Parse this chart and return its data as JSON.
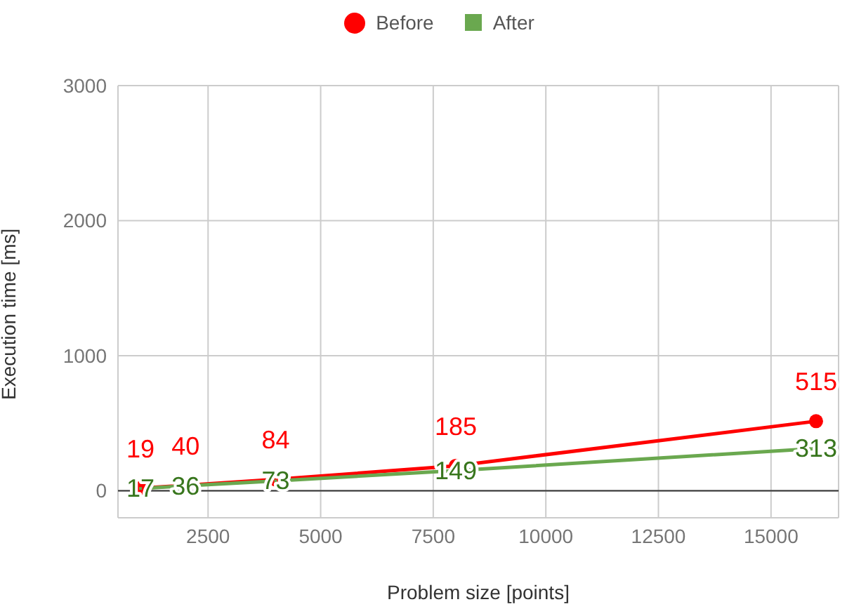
{
  "chart_data": {
    "type": "line",
    "xlabel": "Problem size [points]",
    "ylabel": "Execution time [ms]",
    "x": [
      1000,
      2000,
      4000,
      8000,
      16000
    ],
    "series": [
      {
        "name": "Before",
        "color": "#ff0000",
        "values": [
          19,
          40,
          84,
          185,
          515
        ],
        "marker": "circle"
      },
      {
        "name": "After",
        "color": "#6aa84f",
        "values": [
          17,
          36,
          73,
          149,
          313
        ],
        "marker": "square"
      }
    ],
    "xlim": [
      500,
      16500
    ],
    "xticks": [
      2500,
      5000,
      7500,
      10000,
      12500,
      15000
    ],
    "ylim": [
      -200,
      3000
    ],
    "yticks": [
      0,
      1000,
      2000,
      3000
    ],
    "ref_lines": [
      {
        "axis": "y",
        "value": 0,
        "label": null,
        "color": "#333333"
      }
    ],
    "grid": true,
    "legend": "top",
    "data_labels": true
  }
}
